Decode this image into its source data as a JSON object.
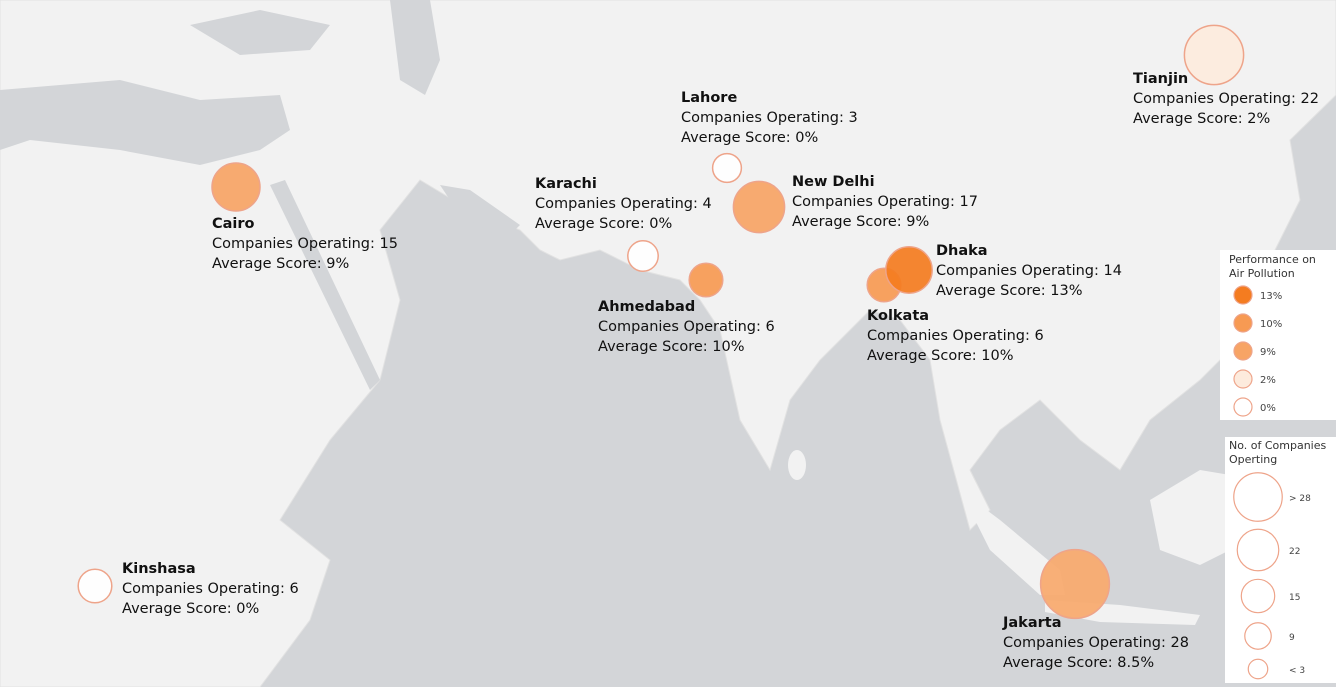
{
  "cities": [
    {
      "name": "Tianjin",
      "companies": 22,
      "companies_label": "Companies Operating: 22",
      "score": 2,
      "score_label": "Average Score: 2%"
    },
    {
      "name": "Lahore",
      "companies": 3,
      "companies_label": "Companies Operating: 3",
      "score": 0,
      "score_label": "Average Score: 0%"
    },
    {
      "name": "New Delhi",
      "companies": 17,
      "companies_label": "Companies Operating: 17",
      "score": 9,
      "score_label": "Average Score: 9%"
    },
    {
      "name": "Cairo",
      "companies": 15,
      "companies_label": "Companies Operating: 15",
      "score": 9,
      "score_label": "Average Score: 9%"
    },
    {
      "name": "Karachi",
      "companies": 4,
      "companies_label": "Companies Operating: 4",
      "score": 0,
      "score_label": "Average Score: 0%"
    },
    {
      "name": "Ahmedabad",
      "companies": 6,
      "companies_label": "Companies Operating: 6",
      "score": 10,
      "score_label": "Average Score: 10%"
    },
    {
      "name": "Dhaka",
      "companies": 14,
      "companies_label": "Companies Operating: 14",
      "score": 13,
      "score_label": "Average Score: 13%"
    },
    {
      "name": "Kolkata",
      "companies": 6,
      "companies_label": "Companies Operating: 6",
      "score": 10,
      "score_label": "Average Score: 10%"
    },
    {
      "name": "Kinshasa",
      "companies": 6,
      "companies_label": "Companies Operating: 6",
      "score": 0,
      "score_label": "Average Score: 0%"
    },
    {
      "name": "Jakarta",
      "companies": 28,
      "companies_label": "Companies Operating: 28",
      "score": 8.5,
      "score_label": "Average Score: 8.5%"
    }
  ],
  "legend_performance": {
    "title": "Performance on Air Pollution",
    "entries": [
      {
        "value": 13,
        "label": "13%"
      },
      {
        "value": 10,
        "label": "10%"
      },
      {
        "value": 9,
        "label": "9%"
      },
      {
        "value": 2,
        "label": "2%"
      },
      {
        "value": 0,
        "label": "0%"
      }
    ]
  },
  "legend_companies": {
    "title": "No. of Companies Operting",
    "entries": [
      {
        "value": 28,
        "label": "> 28"
      },
      {
        "value": 22,
        "label": "22"
      },
      {
        "value": 15,
        "label": "15"
      },
      {
        "value": 9,
        "label": "9"
      },
      {
        "value": 3,
        "label": "< 3"
      }
    ]
  }
}
